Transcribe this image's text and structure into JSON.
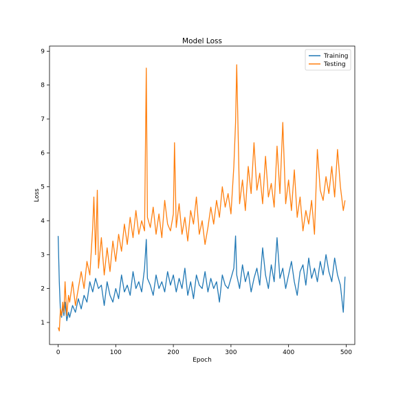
{
  "chart_data": {
    "type": "line",
    "title": "Model Loss",
    "xlabel": "Epoch",
    "ylabel": "Loss",
    "xlim": [
      -15,
      515
    ],
    "ylim": [
      0.35,
      9.15
    ],
    "xticks": [
      0,
      100,
      200,
      300,
      400,
      500
    ],
    "yticks": [
      1,
      2,
      3,
      4,
      5,
      6,
      7,
      8,
      9
    ],
    "grid": false,
    "legend_position": "top-right",
    "series": [
      {
        "name": "Training",
        "color": "#1f77b4",
        "x": [
          0,
          2,
          4,
          6,
          8,
          10,
          12,
          15,
          18,
          20,
          25,
          30,
          35,
          40,
          45,
          50,
          55,
          60,
          65,
          70,
          75,
          80,
          85,
          90,
          95,
          100,
          105,
          110,
          115,
          120,
          125,
          130,
          135,
          140,
          145,
          150,
          153,
          155,
          160,
          165,
          170,
          175,
          180,
          185,
          190,
          195,
          200,
          205,
          210,
          215,
          220,
          225,
          230,
          235,
          240,
          245,
          250,
          255,
          260,
          265,
          270,
          275,
          280,
          285,
          290,
          295,
          300,
          305,
          308,
          310,
          315,
          320,
          325,
          330,
          335,
          340,
          345,
          350,
          355,
          360,
          365,
          370,
          375,
          380,
          385,
          390,
          395,
          400,
          405,
          410,
          415,
          420,
          425,
          430,
          435,
          440,
          445,
          450,
          455,
          460,
          465,
          470,
          475,
          480,
          485,
          490,
          495,
          498
        ],
        "values": [
          3.55,
          2.2,
          1.3,
          1.15,
          1.5,
          1.2,
          1.6,
          1.05,
          1.3,
          1.15,
          1.5,
          1.3,
          1.7,
          1.4,
          1.8,
          1.6,
          2.2,
          1.9,
          2.3,
          2.0,
          2.1,
          1.5,
          2.2,
          1.8,
          1.6,
          2.0,
          1.7,
          2.4,
          1.9,
          2.1,
          1.8,
          2.5,
          2.0,
          2.2,
          1.9,
          2.6,
          3.45,
          2.3,
          2.1,
          1.8,
          2.4,
          2.0,
          2.2,
          1.9,
          2.5,
          2.1,
          2.4,
          1.9,
          2.3,
          2.0,
          2.6,
          1.8,
          2.2,
          1.7,
          2.4,
          2.1,
          2.0,
          2.5,
          1.9,
          2.3,
          2.0,
          2.2,
          1.6,
          2.4,
          2.1,
          2.0,
          2.3,
          2.6,
          3.55,
          2.4,
          2.0,
          2.7,
          2.2,
          2.5,
          1.9,
          2.3,
          2.6,
          2.1,
          3.2,
          2.4,
          2.0,
          2.7,
          2.2,
          3.5,
          2.3,
          2.6,
          2.0,
          2.4,
          2.8,
          2.2,
          1.8,
          2.5,
          2.7,
          2.1,
          2.9,
          2.3,
          2.6,
          2.2,
          2.8,
          2.4,
          3.0,
          2.5,
          2.2,
          2.9,
          2.4,
          2.1,
          1.3,
          2.35
        ]
      },
      {
        "name": "Testing",
        "color": "#ff7f0e",
        "x": [
          0,
          2,
          4,
          6,
          8,
          10,
          12,
          15,
          18,
          20,
          25,
          30,
          35,
          40,
          45,
          50,
          55,
          60,
          62,
          65,
          68,
          70,
          75,
          80,
          85,
          90,
          95,
          100,
          105,
          110,
          115,
          120,
          125,
          130,
          135,
          140,
          145,
          150,
          153,
          155,
          160,
          165,
          170,
          175,
          180,
          185,
          190,
          195,
          200,
          202,
          205,
          210,
          215,
          220,
          225,
          230,
          235,
          240,
          245,
          250,
          255,
          260,
          265,
          270,
          275,
          280,
          285,
          290,
          295,
          300,
          305,
          308,
          310,
          315,
          320,
          325,
          330,
          335,
          340,
          345,
          350,
          355,
          360,
          365,
          370,
          375,
          380,
          385,
          390,
          395,
          400,
          405,
          410,
          415,
          420,
          425,
          430,
          435,
          440,
          445,
          450,
          455,
          460,
          465,
          470,
          475,
          480,
          485,
          490,
          495,
          498
        ],
        "values": [
          0.85,
          0.75,
          1.4,
          1.2,
          1.6,
          1.3,
          2.2,
          1.2,
          1.8,
          1.6,
          2.2,
          1.5,
          2.0,
          2.5,
          2.0,
          2.8,
          2.4,
          3.8,
          4.7,
          3.0,
          4.9,
          2.6,
          3.5,
          2.4,
          3.2,
          2.5,
          3.4,
          2.8,
          3.6,
          3.1,
          3.9,
          3.3,
          4.1,
          3.5,
          4.3,
          3.6,
          4.0,
          3.7,
          8.5,
          4.1,
          3.8,
          4.4,
          3.6,
          4.2,
          3.5,
          4.6,
          3.9,
          3.7,
          4.2,
          6.3,
          3.8,
          4.5,
          3.6,
          4.1,
          3.4,
          4.3,
          3.9,
          4.7,
          3.6,
          4.0,
          3.3,
          3.8,
          4.4,
          3.9,
          4.6,
          4.1,
          5.0,
          4.4,
          4.8,
          4.2,
          5.6,
          6.9,
          8.6,
          4.5,
          5.2,
          4.3,
          5.6,
          4.8,
          6.3,
          4.9,
          5.4,
          4.5,
          5.9,
          4.7,
          5.1,
          4.4,
          6.2,
          4.8,
          6.9,
          4.5,
          5.2,
          4.3,
          5.5,
          4.1,
          4.7,
          3.7,
          4.3,
          3.9,
          4.6,
          3.6,
          6.1,
          4.9,
          4.6,
          5.3,
          4.8,
          5.6,
          4.7,
          6.1,
          5.0,
          4.3,
          4.6
        ]
      }
    ]
  }
}
